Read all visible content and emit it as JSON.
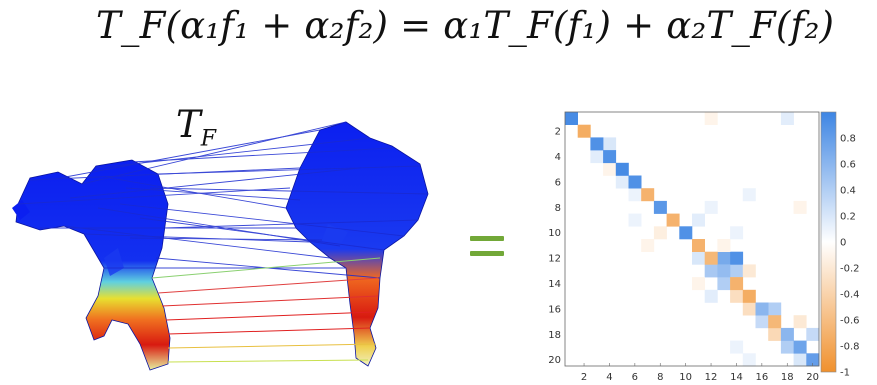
{
  "equation": {
    "text": "T_F(α₁f₁ + α₂f₂) = α₁T_F(f₁) + α₂T_F(f₂)"
  },
  "map_label": {
    "main": "T",
    "sub": "F"
  },
  "equals_color": "#72a838",
  "colormap": {
    "positive": "#3d85e3",
    "negative": "#f0912e",
    "zero": "#ffffff"
  },
  "matrix": {
    "size": 20,
    "x_ticks": [
      "2",
      "4",
      "6",
      "8",
      "10",
      "12",
      "14",
      "16",
      "18",
      "20"
    ],
    "y_ticks": [
      "2",
      "4",
      "6",
      "8",
      "10",
      "12",
      "14",
      "16",
      "18",
      "20"
    ],
    "colorbar_ticks": [
      "0.8",
      "0.6",
      "0.4",
      "0.2",
      "0",
      "-0.2",
      "-0.4",
      "-0.6",
      "-0.8",
      "-1"
    ],
    "diagonal": [
      0.95,
      -0.75,
      0.9,
      0.9,
      0.95,
      0.9,
      -0.7,
      0.85,
      -0.7,
      0.9,
      -0.7,
      -0.65,
      0.55,
      -0.7,
      -0.75,
      0.6,
      -0.65,
      0.6,
      0.75,
      0.8
    ],
    "offdiag": [
      {
        "r": 1,
        "c": 12,
        "v": -0.1
      },
      {
        "r": 1,
        "c": 18,
        "v": 0.15
      },
      {
        "r": 3,
        "c": 4,
        "v": 0.2
      },
      {
        "r": 4,
        "c": 3,
        "v": 0.15
      },
      {
        "r": 5,
        "c": 4,
        "v": -0.1
      },
      {
        "r": 6,
        "c": 5,
        "v": 0.15
      },
      {
        "r": 7,
        "c": 6,
        "v": 0.1
      },
      {
        "r": 8,
        "c": 12,
        "v": 0.1
      },
      {
        "r": 9,
        "c": 6,
        "v": 0.1
      },
      {
        "r": 9,
        "c": 11,
        "v": 0.15
      },
      {
        "r": 10,
        "c": 8,
        "v": -0.15
      },
      {
        "r": 11,
        "c": 7,
        "v": -0.1
      },
      {
        "r": 12,
        "c": 11,
        "v": 0.2
      },
      {
        "r": 13,
        "c": 12,
        "v": 0.45
      },
      {
        "r": 13,
        "c": 14,
        "v": 0.4
      },
      {
        "r": 12,
        "c": 13,
        "v": 0.7
      },
      {
        "r": 12,
        "c": 14,
        "v": 0.9
      },
      {
        "r": 14,
        "c": 13,
        "v": 0.4
      },
      {
        "r": 13,
        "c": 15,
        "v": -0.2
      },
      {
        "r": 15,
        "c": 14,
        "v": -0.3
      },
      {
        "r": 16,
        "c": 15,
        "v": -0.3
      },
      {
        "r": 17,
        "c": 16,
        "v": 0.3
      },
      {
        "r": 16,
        "c": 17,
        "v": 0.4
      },
      {
        "r": 18,
        "c": 17,
        "v": -0.35
      },
      {
        "r": 19,
        "c": 18,
        "v": 0.4
      },
      {
        "r": 18,
        "c": 20,
        "v": 0.3
      },
      {
        "r": 20,
        "c": 19,
        "v": 0.2
      },
      {
        "r": 17,
        "c": 19,
        "v": -0.2
      },
      {
        "r": 15,
        "c": 12,
        "v": 0.15
      },
      {
        "r": 11,
        "c": 13,
        "v": -0.1
      },
      {
        "r": 14,
        "c": 11,
        "v": -0.1
      },
      {
        "r": 19,
        "c": 14,
        "v": 0.1
      },
      {
        "r": 20,
        "c": 15,
        "v": 0.1
      },
      {
        "r": 10,
        "c": 14,
        "v": 0.1
      },
      {
        "r": 7,
        "c": 15,
        "v": 0.1
      },
      {
        "r": 8,
        "c": 19,
        "v": -0.1
      }
    ]
  }
}
